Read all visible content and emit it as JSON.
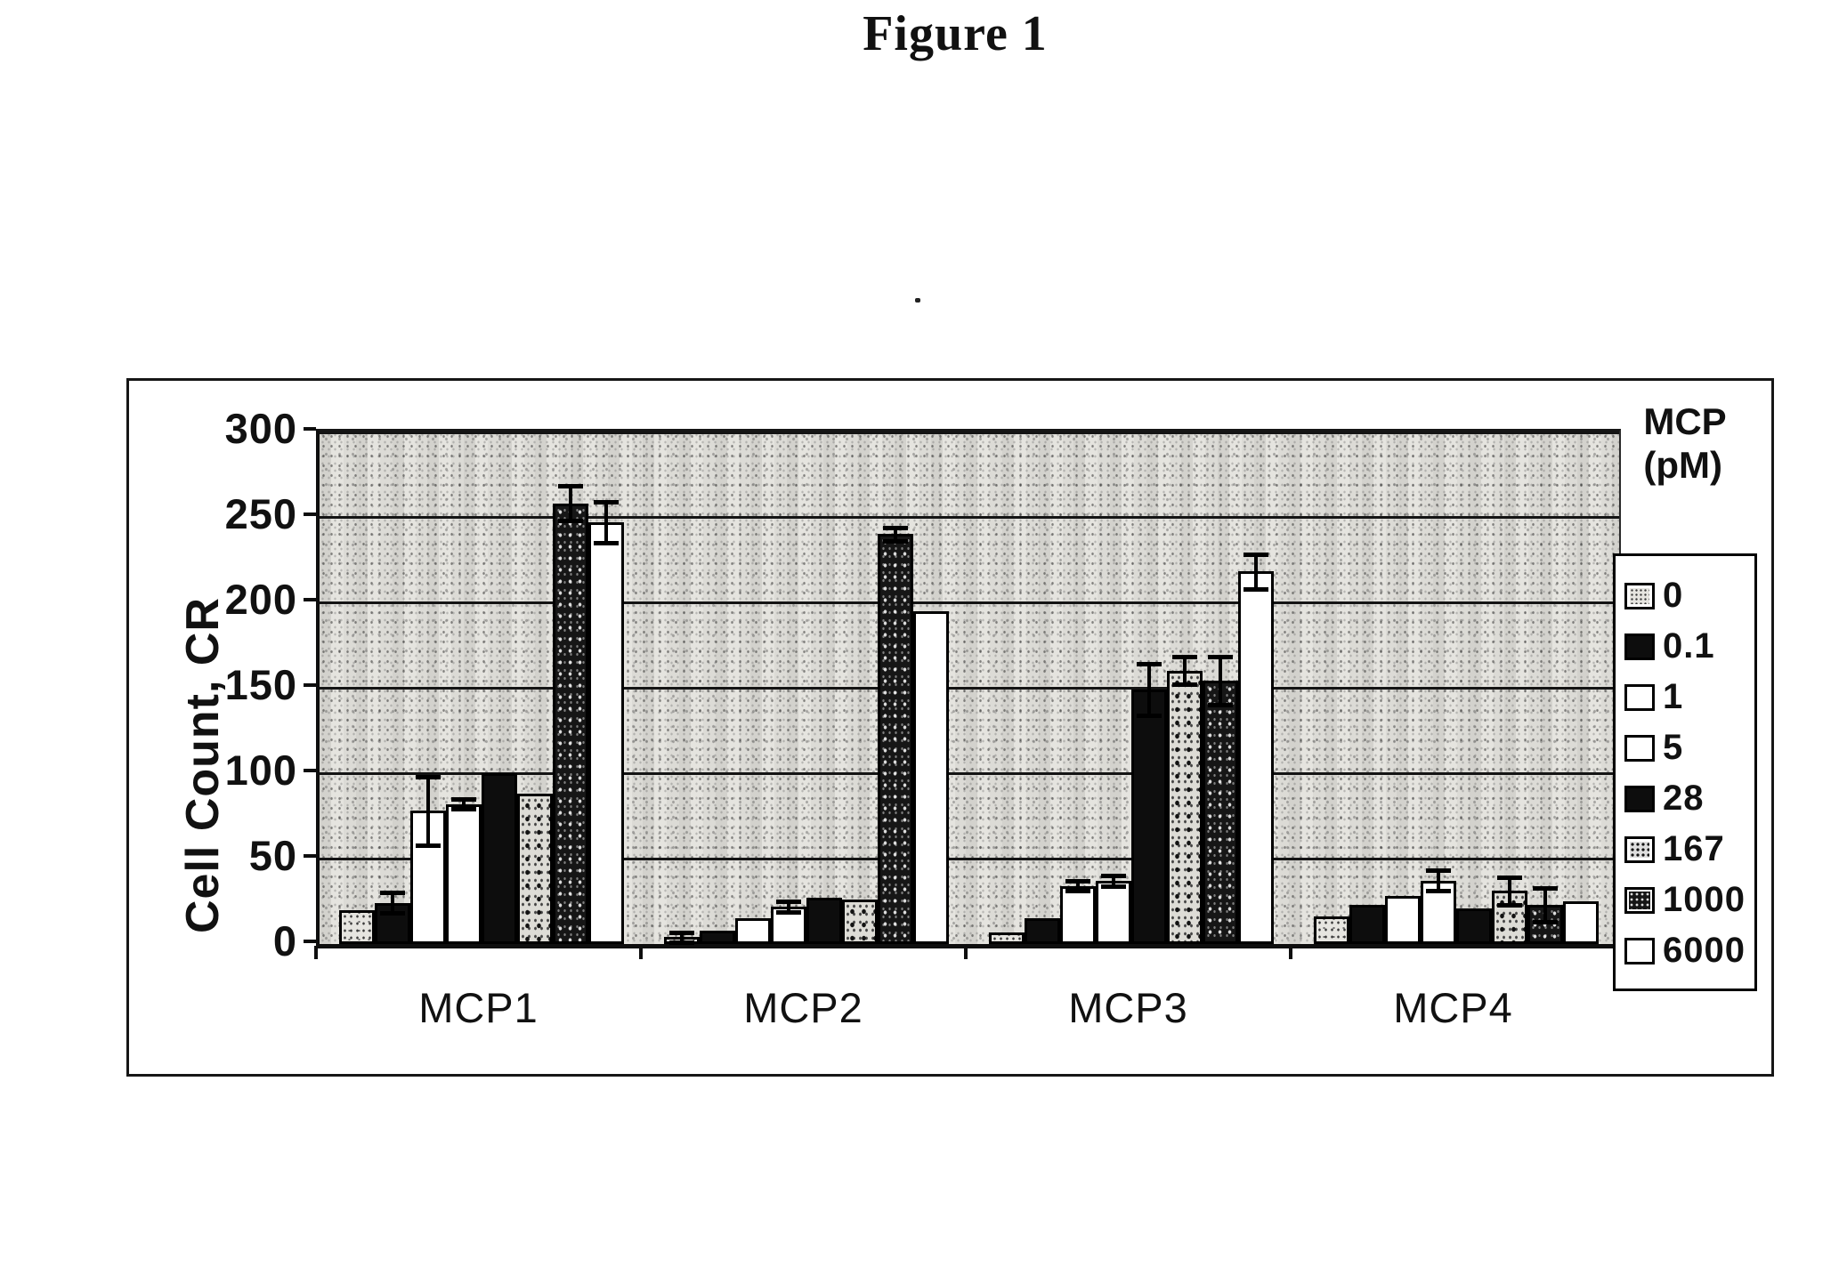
{
  "figure": {
    "title": "Figure 1"
  },
  "legend": {
    "title_lines": [
      "MCP",
      "(pM)"
    ]
  },
  "colors": {
    "ink": "#111111",
    "plot_bg": "#e3e2dd",
    "page_bg": "#ffffff",
    "bar_dark": "#0d0d0d"
  },
  "chart_data": {
    "type": "bar",
    "title": "Figure 1",
    "xlabel": "",
    "ylabel": "Cell Count, CR",
    "ylim": [
      0,
      300
    ],
    "yticks": [
      0,
      50,
      100,
      150,
      200,
      250,
      300
    ],
    "grid": true,
    "legend_title": "MCP (pM)",
    "legend_position": "right",
    "categories": [
      "MCP1",
      "MCP2",
      "MCP3",
      "MCP4"
    ],
    "series": [
      {
        "name": "0",
        "pattern": "speckle-light",
        "values": [
          20,
          4,
          7,
          16
        ],
        "errors": [
          0,
          3,
          0,
          0
        ]
      },
      {
        "name": "0.1",
        "pattern": "solid-black",
        "values": [
          24,
          8,
          15,
          23
        ],
        "errors": [
          6,
          0,
          0,
          0
        ]
      },
      {
        "name": "1",
        "pattern": "white",
        "values": [
          78,
          15,
          34,
          28
        ],
        "errors": [
          20,
          0,
          3,
          0
        ]
      },
      {
        "name": "5",
        "pattern": "white",
        "values": [
          82,
          22,
          37,
          37
        ],
        "errors": [
          3,
          3,
          3,
          6
        ]
      },
      {
        "name": "28",
        "pattern": "solid-black",
        "values": [
          100,
          27,
          149,
          21
        ],
        "errors": [
          0,
          0,
          15,
          0
        ]
      },
      {
        "name": "167",
        "pattern": "speckle-mid",
        "values": [
          88,
          26,
          160,
          31
        ],
        "errors": [
          0,
          0,
          8,
          8
        ]
      },
      {
        "name": "1000",
        "pattern": "speckle-dark",
        "values": [
          258,
          240,
          154,
          23
        ],
        "errors": [
          10,
          4,
          14,
          10
        ]
      },
      {
        "name": "6000",
        "pattern": "white",
        "values": [
          247,
          195,
          218,
          25
        ],
        "errors": [
          12,
          0,
          10,
          0
        ]
      }
    ]
  }
}
